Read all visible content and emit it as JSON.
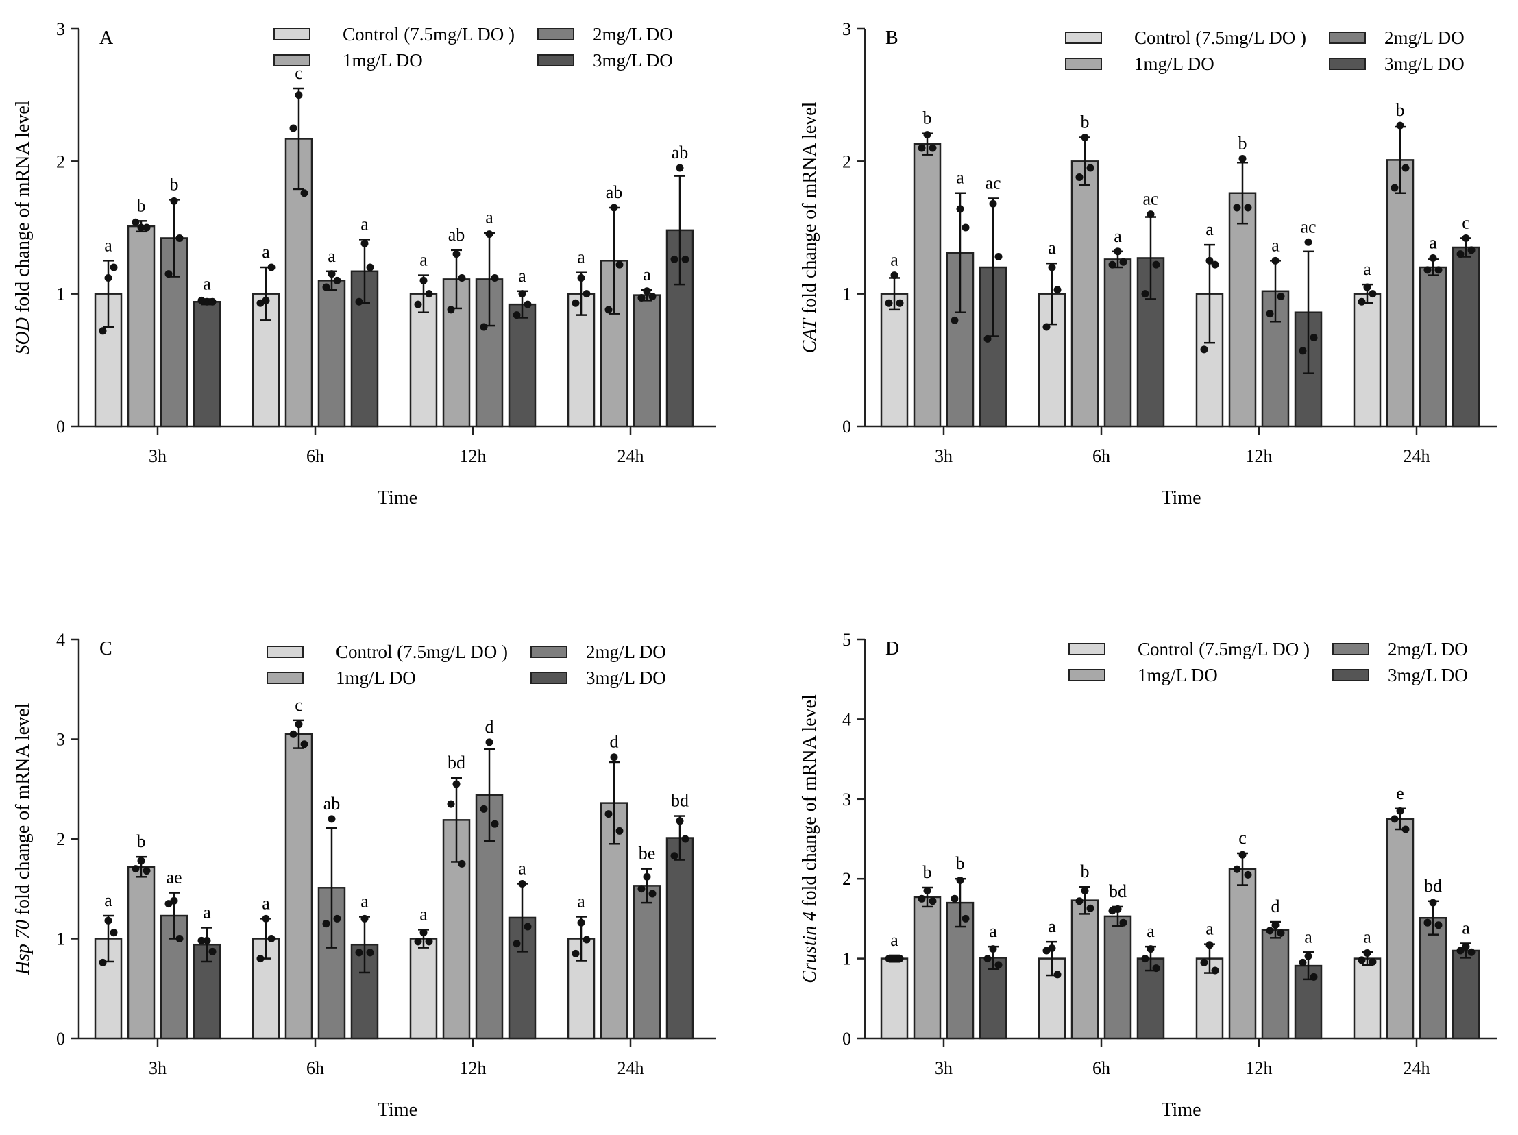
{
  "figure": {
    "colors": {
      "Control (7.5mg/L DO )": "#d6d6d6",
      "1mg/L DO": "#a8a8a8",
      "2mg/L DO": "#7e7e7e",
      "3mg/L DO": "#555555",
      "axis": "#222222",
      "point": "#111111"
    }
  },
  "chart_data": [
    {
      "id": "A",
      "type": "bar",
      "panel_label": "A",
      "title": "",
      "xlabel": "Time",
      "ylabel_italic": "SOD",
      "ylabel_rest": " fold change of mRNA level",
      "ylim": [
        0,
        3
      ],
      "yticks": [
        "0",
        "1",
        "2",
        "3"
      ],
      "categories": [
        "3h",
        "6h",
        "12h",
        "24h"
      ],
      "legend": [
        "Control (7.5mg/L DO )",
        "1mg/L DO",
        "2mg/L DO",
        "3mg/L DO"
      ],
      "series": [
        {
          "name": "Control (7.5mg/L DO )",
          "values": [
            1.0,
            1.0,
            1.0,
            1.0
          ],
          "err": [
            0.25,
            0.2,
            0.14,
            0.16
          ],
          "sig": [
            "a",
            "a",
            "a",
            "a"
          ],
          "points": [
            [
              1.12,
              0.72,
              1.2
            ],
            [
              0.95,
              0.93,
              1.2
            ],
            [
              1.1,
              0.92,
              1.0
            ],
            [
              1.12,
              0.93,
              1.0
            ]
          ]
        },
        {
          "name": "1mg/L DO",
          "values": [
            1.51,
            2.17,
            1.11,
            1.25
          ],
          "err": [
            0.04,
            0.38,
            0.22,
            0.4
          ],
          "sig": [
            "b",
            "c",
            "ab",
            "ab"
          ],
          "points": [
            [
              1.5,
              1.54,
              1.5
            ],
            [
              2.5,
              2.25,
              1.76
            ],
            [
              1.3,
              0.88,
              1.12
            ],
            [
              1.65,
              0.88,
              1.22
            ]
          ]
        },
        {
          "name": "2mg/L DO",
          "values": [
            1.42,
            1.1,
            1.11,
            0.99
          ],
          "err": [
            0.29,
            0.07,
            0.35,
            0.04
          ],
          "sig": [
            "b",
            "a",
            "a",
            "a"
          ],
          "points": [
            [
              1.7,
              1.15,
              1.42
            ],
            [
              1.15,
              1.05,
              1.1
            ],
            [
              1.45,
              0.75,
              1.12
            ],
            [
              1.02,
              0.97,
              0.98
            ]
          ]
        },
        {
          "name": "3mg/L DO",
          "values": [
            0.94,
            1.17,
            0.92,
            1.48
          ],
          "err": [
            0.02,
            0.24,
            0.1,
            0.41
          ],
          "sig": [
            "a",
            "a",
            "a",
            "ab"
          ],
          "points": [
            [
              0.94,
              0.95,
              0.94
            ],
            [
              1.38,
              0.94,
              1.2
            ],
            [
              1.0,
              0.84,
              0.92
            ],
            [
              1.95,
              1.26,
              1.26
            ]
          ]
        }
      ]
    },
    {
      "id": "B",
      "type": "bar",
      "panel_label": "B",
      "title": "",
      "xlabel": "Time",
      "ylabel_italic": "CAT",
      "ylabel_rest": " fold change of mRNA level",
      "ylim": [
        0,
        3
      ],
      "yticks": [
        "0",
        "1",
        "2",
        "3"
      ],
      "categories": [
        "3h",
        "6h",
        "12h",
        "24h"
      ],
      "legend": [
        "Control (7.5mg/L DO )",
        "1mg/L DO",
        "2mg/L DO",
        "3mg/L DO"
      ],
      "series": [
        {
          "name": "Control (7.5mg/L DO )",
          "values": [
            1.0,
            1.0,
            1.0,
            1.0
          ],
          "err": [
            0.12,
            0.23,
            0.37,
            0.07
          ],
          "sig": [
            "a",
            "a",
            "a",
            "a"
          ],
          "points": [
            [
              1.14,
              0.93,
              0.93
            ],
            [
              1.2,
              0.75,
              1.03
            ],
            [
              1.25,
              0.58,
              1.22
            ],
            [
              1.05,
              0.94,
              1.0
            ]
          ]
        },
        {
          "name": "1mg/L DO",
          "values": [
            2.13,
            2.0,
            1.76,
            2.01
          ],
          "err": [
            0.08,
            0.18,
            0.23,
            0.25
          ],
          "sig": [
            "b",
            "b",
            "b",
            "b"
          ],
          "points": [
            [
              2.2,
              2.1,
              2.1
            ],
            [
              2.18,
              1.88,
              1.95
            ],
            [
              2.02,
              1.65,
              1.65
            ],
            [
              2.27,
              1.8,
              1.95
            ]
          ]
        },
        {
          "name": "2mg/L DO",
          "values": [
            1.31,
            1.26,
            1.02,
            1.2
          ],
          "err": [
            0.45,
            0.06,
            0.23,
            0.06
          ],
          "sig": [
            "a",
            "a",
            "a",
            "a"
          ],
          "points": [
            [
              1.64,
              0.8,
              1.5
            ],
            [
              1.32,
              1.22,
              1.24
            ],
            [
              1.25,
              0.85,
              0.98
            ],
            [
              1.27,
              1.18,
              1.18
            ]
          ]
        },
        {
          "name": "3mg/L DO",
          "values": [
            1.2,
            1.27,
            0.86,
            1.35
          ],
          "err": [
            0.52,
            0.31,
            0.46,
            0.07
          ],
          "sig": [
            "ac",
            "ac",
            "ac",
            "c"
          ],
          "points": [
            [
              1.68,
              0.66,
              1.28
            ],
            [
              1.6,
              1.0,
              1.22
            ],
            [
              1.39,
              0.57,
              0.67
            ],
            [
              1.42,
              1.3,
              1.33
            ]
          ]
        }
      ]
    },
    {
      "id": "C",
      "type": "bar",
      "panel_label": "C",
      "title": "",
      "xlabel": "Time",
      "ylabel_italic": "Hsp 70",
      "ylabel_rest": " fold change of mRNA level",
      "ylim": [
        0,
        4
      ],
      "yticks": [
        "0",
        "1",
        "2",
        "3",
        "4"
      ],
      "categories": [
        "3h",
        "6h",
        "12h",
        "24h"
      ],
      "legend": [
        "Control (7.5mg/L DO )",
        "1mg/L DO",
        "2mg/L DO",
        "3mg/L DO"
      ],
      "series": [
        {
          "name": "Control (7.5mg/L DO )",
          "values": [
            1.0,
            1.0,
            1.0,
            1.0
          ],
          "err": [
            0.23,
            0.2,
            0.09,
            0.22
          ],
          "sig": [
            "a",
            "a",
            "a",
            "a"
          ],
          "points": [
            [
              1.18,
              0.76,
              1.06
            ],
            [
              1.2,
              0.8,
              1.0
            ],
            [
              1.06,
              0.97,
              0.97
            ],
            [
              1.16,
              0.85,
              0.99
            ]
          ]
        },
        {
          "name": "1mg/L DO",
          "values": [
            1.72,
            3.05,
            2.19,
            2.36
          ],
          "err": [
            0.1,
            0.14,
            0.42,
            0.41
          ],
          "sig": [
            "b",
            "c",
            "bd",
            "d"
          ],
          "points": [
            [
              1.78,
              1.7,
              1.68
            ],
            [
              3.15,
              3.05,
              2.95
            ],
            [
              2.55,
              2.35,
              1.75
            ],
            [
              2.82,
              2.25,
              2.08
            ]
          ]
        },
        {
          "name": "2mg/L DO",
          "values": [
            1.23,
            1.51,
            2.44,
            1.53
          ],
          "err": [
            0.23,
            0.6,
            0.46,
            0.17
          ],
          "sig": [
            "ae",
            "ab",
            "d",
            "be"
          ],
          "points": [
            [
              1.38,
              1.35,
              1.0
            ],
            [
              2.2,
              1.15,
              1.2
            ],
            [
              2.97,
              2.3,
              2.15
            ],
            [
              1.62,
              1.5,
              1.45
            ]
          ]
        },
        {
          "name": "3mg/L DO",
          "values": [
            0.94,
            0.94,
            1.21,
            2.01
          ],
          "err": [
            0.17,
            0.28,
            0.34,
            0.22
          ],
          "sig": [
            "a",
            "a",
            "a",
            "bd"
          ],
          "points": [
            [
              0.98,
              0.98,
              0.87
            ],
            [
              1.2,
              0.86,
              0.86
            ],
            [
              1.55,
              0.95,
              1.12
            ],
            [
              2.18,
              1.83,
              2.0
            ]
          ]
        }
      ]
    },
    {
      "id": "D",
      "type": "bar",
      "panel_label": "D",
      "title": "",
      "xlabel": "Time",
      "ylabel_italic": "Crustin 4",
      "ylabel_rest": " fold change of mRNA level",
      "ylim": [
        0,
        5
      ],
      "yticks": [
        "0",
        "1",
        "2",
        "3",
        "4",
        "5"
      ],
      "categories": [
        "3h",
        "6h",
        "12h",
        "24h"
      ],
      "legend": [
        "Control (7.5mg/L DO )",
        "1mg/L DO",
        "2mg/L DO",
        "3mg/L DO"
      ],
      "series": [
        {
          "name": "Control (7.5mg/L DO )",
          "values": [
            1.0,
            1.0,
            1.0,
            1.0
          ],
          "err": [
            0.04,
            0.21,
            0.18,
            0.08
          ],
          "sig": [
            "a",
            "a",
            "a",
            "a"
          ],
          "points": [
            [
              1.0,
              1.0,
              1.0
            ],
            [
              1.13,
              1.1,
              0.8
            ],
            [
              1.17,
              0.95,
              0.85
            ],
            [
              1.07,
              0.98,
              0.96
            ]
          ]
        },
        {
          "name": "1mg/L DO",
          "values": [
            1.77,
            1.73,
            2.12,
            2.75
          ],
          "err": [
            0.12,
            0.17,
            0.2,
            0.13
          ],
          "sig": [
            "b",
            "b",
            "c",
            "e"
          ],
          "points": [
            [
              1.85,
              1.75,
              1.72
            ],
            [
              1.85,
              1.72,
              1.63
            ],
            [
              2.3,
              2.12,
              2.05
            ],
            [
              2.85,
              2.75,
              2.62
            ]
          ]
        },
        {
          "name": "2mg/L DO",
          "values": [
            1.7,
            1.53,
            1.36,
            1.51
          ],
          "err": [
            0.3,
            0.12,
            0.1,
            0.21
          ],
          "sig": [
            "b",
            "bd",
            "d",
            "bd"
          ],
          "points": [
            [
              1.98,
              1.75,
              1.5
            ],
            [
              1.62,
              1.6,
              1.45
            ],
            [
              1.42,
              1.35,
              1.32
            ],
            [
              1.7,
              1.45,
              1.42
            ]
          ]
        },
        {
          "name": "3mg/L DO",
          "values": [
            1.01,
            1.0,
            0.91,
            1.1
          ],
          "err": [
            0.14,
            0.15,
            0.17,
            0.09
          ],
          "sig": [
            "a",
            "a",
            "a",
            "a"
          ],
          "points": [
            [
              1.12,
              1.0,
              0.92
            ],
            [
              1.12,
              1.0,
              0.88
            ],
            [
              1.03,
              0.95,
              0.77
            ],
            [
              1.15,
              1.1,
              1.08
            ]
          ]
        }
      ]
    }
  ]
}
